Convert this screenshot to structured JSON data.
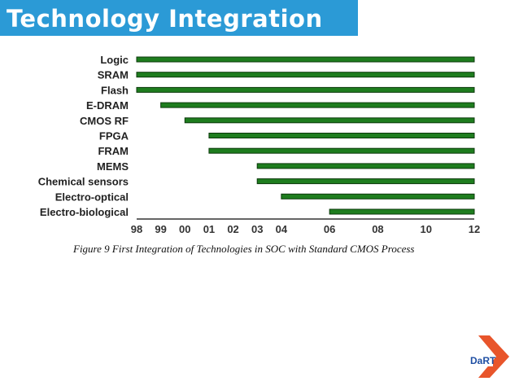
{
  "slide": {
    "title": "Technology Integration",
    "caption": "Figure 9    First Integration of Technologies in SOC with Standard CMOS Process",
    "logo_text": "DaRT"
  },
  "colors": {
    "title_bar": "#2b9ad6",
    "bar_fill": "#1e7d1e",
    "bar_outline": "#0c3a0c",
    "logo_orange": "#e8552b",
    "logo_blue": "#1f4fa3"
  },
  "chart_data": {
    "type": "bar",
    "orientation": "horizontal",
    "categories": [
      "Logic",
      "SRAM",
      "Flash",
      "E-DRAM",
      "CMOS RF",
      "FPGA",
      "FRAM",
      "MEMS",
      "Chemical sensors",
      "Electro-optical",
      "Electro-biological"
    ],
    "start_year": [
      1998,
      1998,
      1998,
      1999,
      2000,
      2001,
      2001,
      2003,
      2003,
      2004,
      2006
    ],
    "end_year": [
      2012,
      2012,
      2012,
      2012,
      2012,
      2012,
      2012,
      2012,
      2012,
      2012,
      2012
    ],
    "x_ticks": [
      "98",
      "99",
      "00",
      "01",
      "02",
      "03",
      "04",
      "06",
      "08",
      "10",
      "12"
    ],
    "x_tick_values": [
      1998,
      1999,
      2000,
      2001,
      2002,
      2003,
      2004,
      2006,
      2008,
      2010,
      2012
    ],
    "xlim": [
      1998,
      2012
    ],
    "title": "",
    "xlabel": "",
    "ylabel": "",
    "grid": false,
    "legend": "none"
  }
}
